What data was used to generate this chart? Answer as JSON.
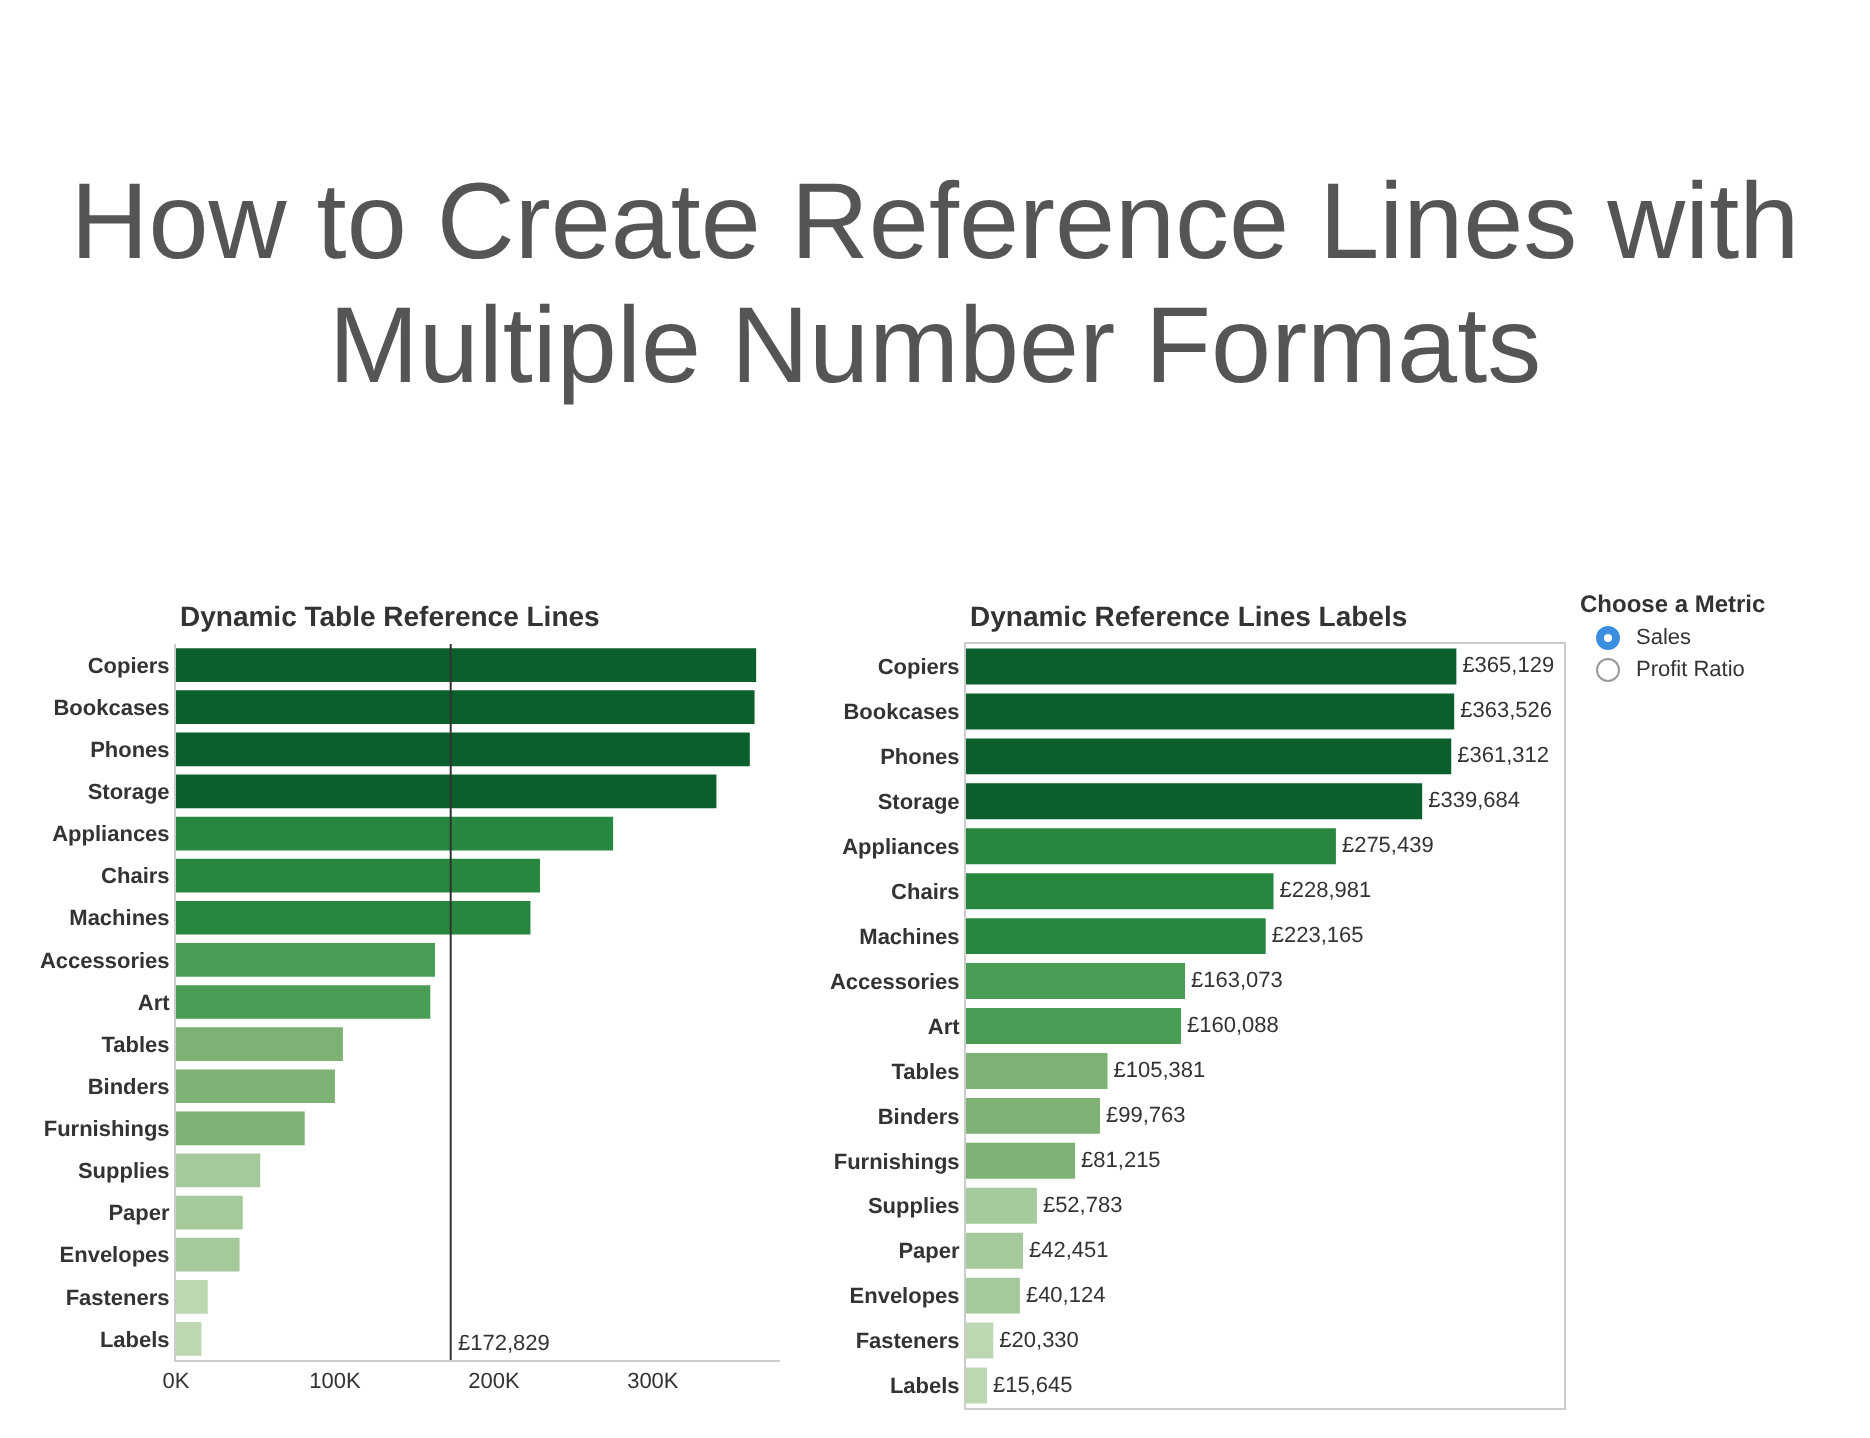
{
  "chart_data": [
    {
      "type": "other",
      "title": "How to Create Reference Lines with Multiple Number Formats"
    },
    {
      "type": "bar",
      "orientation": "horizontal",
      "title": "Dynamic Table Reference Lines",
      "categories": [
        "Copiers",
        "Bookcases",
        "Phones",
        "Storage",
        "Appliances",
        "Chairs",
        "Machines",
        "Accessories",
        "Art",
        "Tables",
        "Binders",
        "Furnishings",
        "Supplies",
        "Paper",
        "Envelopes",
        "Fasteners",
        "Labels"
      ],
      "values": [
        365000,
        364000,
        361000,
        340000,
        275000,
        229000,
        223000,
        163000,
        160000,
        105000,
        100000,
        81000,
        53000,
        42000,
        40000,
        20000,
        16000
      ],
      "colors": [
        "#0b5f2c",
        "#0b5f2c",
        "#0b5f2c",
        "#0b5f2c",
        "#28873f",
        "#28873f",
        "#28873f",
        "#4a9d55",
        "#4a9d55",
        "#7eb275",
        "#7eb275",
        "#7eb275",
        "#a6c99b",
        "#a6c99b",
        "#a6c99b",
        "#bdd7b3",
        "#bdd7b3"
      ],
      "xlim": [
        0,
        380000
      ],
      "xticks": [
        {
          "value": 0,
          "label": "0K"
        },
        {
          "value": 100000,
          "label": "100K"
        },
        {
          "value": 200000,
          "label": "200K"
        },
        {
          "value": 300000,
          "label": "300K"
        }
      ],
      "ref_lines": [
        {
          "axis": "x",
          "value": 172829,
          "label": "£172,829",
          "color": "#333333"
        }
      ],
      "grid": false
    },
    {
      "type": "bar",
      "orientation": "horizontal",
      "title": "Dynamic Reference Lines Labels",
      "categories": [
        "Copiers",
        "Bookcases",
        "Phones",
        "Storage",
        "Appliances",
        "Chairs",
        "Machines",
        "Accessories",
        "Art",
        "Tables",
        "Binders",
        "Furnishings",
        "Supplies",
        "Paper",
        "Envelopes",
        "Fasteners",
        "Labels"
      ],
      "values": [
        365129,
        363526,
        361312,
        339684,
        275439,
        228981,
        223165,
        163073,
        160088,
        105381,
        99763,
        81215,
        52783,
        42451,
        40124,
        20330,
        15645
      ],
      "colors": [
        "#0b5f2c",
        "#0b5f2c",
        "#0b5f2c",
        "#0b5f2c",
        "#28873f",
        "#28873f",
        "#28873f",
        "#4a9d55",
        "#4a9d55",
        "#7eb275",
        "#7eb275",
        "#7eb275",
        "#a6c99b",
        "#a6c99b",
        "#a6c99b",
        "#bdd7b3",
        "#bdd7b3"
      ],
      "value_labels": [
        "£365,129",
        "£363,526",
        "£361,312",
        "£339,684",
        "£275,439",
        "£228,981",
        "£223,165",
        "£163,073",
        "£160,088",
        "£105,381",
        "£99,763",
        "£81,215",
        "£52,783",
        "£42,451",
        "£40,124",
        "£20,330",
        "£15,645"
      ],
      "grid": false
    },
    {
      "type": "other",
      "title": "Choose a Metric",
      "annotations": [
        "Sales",
        "Profit Ratio"
      ]
    }
  ]
}
